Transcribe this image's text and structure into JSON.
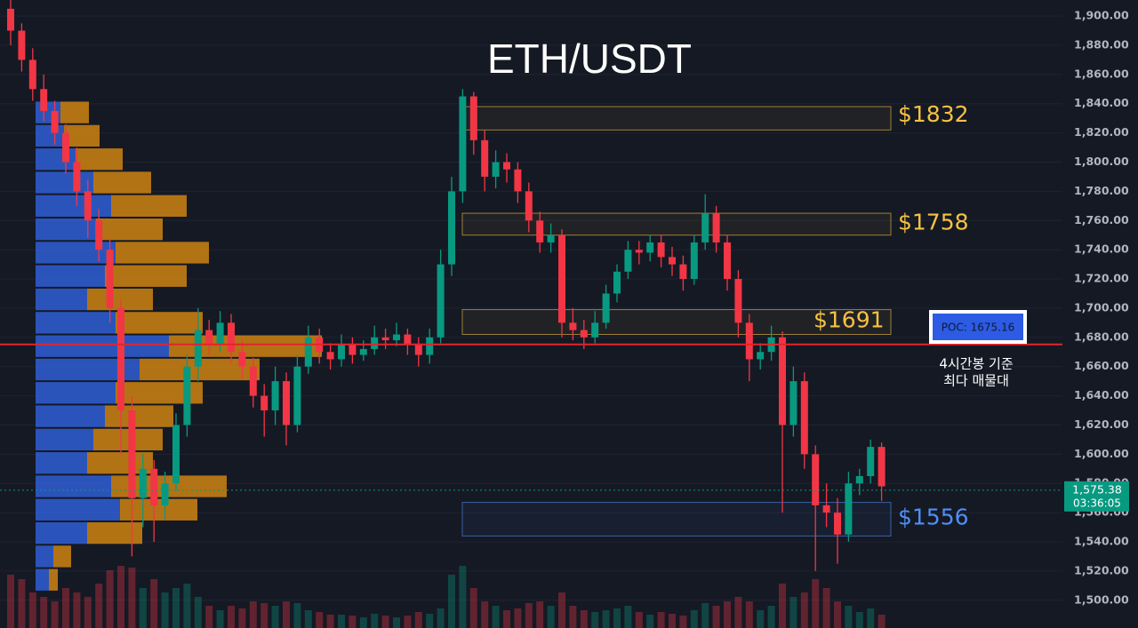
{
  "chart_data": {
    "type": "candlestick",
    "title": "ETH/USDT",
    "ylim": [
      1481,
      1911
    ],
    "yticks": [
      {
        "value": 1500,
        "label": "1,500.00"
      },
      {
        "value": 1520,
        "label": "1,520.00"
      },
      {
        "value": 1540,
        "label": "1,540.00"
      },
      {
        "value": 1560,
        "label": "1,560.00"
      },
      {
        "value": 1580,
        "label": "1,580.00"
      },
      {
        "value": 1600,
        "label": "1,600.00"
      },
      {
        "value": 1620,
        "label": "1,620.00"
      },
      {
        "value": 1640,
        "label": "1,640.00"
      },
      {
        "value": 1660,
        "label": "1,660.00"
      },
      {
        "value": 1680,
        "label": "1,680.00"
      },
      {
        "value": 1700,
        "label": "1,700.00"
      },
      {
        "value": 1720,
        "label": "1,720.00"
      },
      {
        "value": 1740,
        "label": "1,740.00"
      },
      {
        "value": 1760,
        "label": "1,760.00"
      },
      {
        "value": 1780,
        "label": "1,780.00"
      },
      {
        "value": 1800,
        "label": "1,800.00"
      },
      {
        "value": 1820,
        "label": "1,820.00"
      },
      {
        "value": 1840,
        "label": "1,840.00"
      },
      {
        "value": 1860,
        "label": "1,860.00"
      },
      {
        "value": 1880,
        "label": "1,880.00"
      },
      {
        "value": 1900,
        "label": "1,900.00"
      }
    ],
    "grid": true,
    "up_color": "#089981",
    "down_color": "#f23645",
    "ohlc": [
      [
        1905,
        1912,
        1880,
        1890
      ],
      [
        1890,
        1895,
        1862,
        1870
      ],
      [
        1870,
        1878,
        1842,
        1850
      ],
      [
        1850,
        1860,
        1828,
        1835
      ],
      [
        1835,
        1842,
        1812,
        1820
      ],
      [
        1820,
        1826,
        1792,
        1800
      ],
      [
        1800,
        1810,
        1770,
        1780
      ],
      [
        1780,
        1788,
        1748,
        1760
      ],
      [
        1760,
        1768,
        1732,
        1740
      ],
      [
        1740,
        1748,
        1690,
        1700
      ],
      [
        1700,
        1706,
        1600,
        1630
      ],
      [
        1630,
        1640,
        1530,
        1570
      ],
      [
        1570,
        1600,
        1550,
        1590
      ],
      [
        1590,
        1596,
        1540,
        1565
      ],
      [
        1565,
        1588,
        1555,
        1580
      ],
      [
        1580,
        1628,
        1575,
        1620
      ],
      [
        1620,
        1668,
        1612,
        1660
      ],
      [
        1660,
        1700,
        1650,
        1685
      ],
      [
        1685,
        1692,
        1668,
        1675
      ],
      [
        1675,
        1698,
        1670,
        1690
      ],
      [
        1690,
        1696,
        1662,
        1670
      ],
      [
        1670,
        1678,
        1652,
        1660
      ],
      [
        1660,
        1666,
        1632,
        1640
      ],
      [
        1640,
        1648,
        1612,
        1630
      ],
      [
        1630,
        1660,
        1620,
        1650
      ],
      [
        1650,
        1656,
        1606,
        1620
      ],
      [
        1620,
        1668,
        1615,
        1660
      ],
      [
        1660,
        1688,
        1655,
        1680
      ],
      [
        1680,
        1686,
        1662,
        1670
      ],
      [
        1670,
        1676,
        1658,
        1665
      ],
      [
        1665,
        1682,
        1660,
        1675
      ],
      [
        1675,
        1680,
        1662,
        1668
      ],
      [
        1668,
        1678,
        1664,
        1672
      ],
      [
        1672,
        1688,
        1668,
        1680
      ],
      [
        1680,
        1686,
        1672,
        1678
      ],
      [
        1678,
        1690,
        1674,
        1682
      ],
      [
        1682,
        1686,
        1668,
        1675
      ],
      [
        1675,
        1680,
        1660,
        1668
      ],
      [
        1668,
        1686,
        1662,
        1680
      ],
      [
        1680,
        1740,
        1676,
        1730
      ],
      [
        1730,
        1790,
        1722,
        1780
      ],
      [
        1780,
        1850,
        1772,
        1845
      ],
      [
        1845,
        1848,
        1805,
        1815
      ],
      [
        1815,
        1822,
        1780,
        1790
      ],
      [
        1790,
        1808,
        1782,
        1800
      ],
      [
        1800,
        1806,
        1786,
        1795
      ],
      [
        1795,
        1800,
        1772,
        1780
      ],
      [
        1780,
        1786,
        1752,
        1760
      ],
      [
        1760,
        1766,
        1738,
        1745
      ],
      [
        1745,
        1758,
        1738,
        1750
      ],
      [
        1750,
        1754,
        1680,
        1690
      ],
      [
        1690,
        1700,
        1678,
        1685
      ],
      [
        1685,
        1692,
        1672,
        1680
      ],
      [
        1680,
        1698,
        1676,
        1690
      ],
      [
        1690,
        1716,
        1686,
        1710
      ],
      [
        1710,
        1730,
        1704,
        1725
      ],
      [
        1725,
        1746,
        1720,
        1740
      ],
      [
        1740,
        1746,
        1730,
        1738
      ],
      [
        1738,
        1750,
        1732,
        1745
      ],
      [
        1745,
        1750,
        1728,
        1735
      ],
      [
        1735,
        1742,
        1722,
        1730
      ],
      [
        1730,
        1736,
        1712,
        1720
      ],
      [
        1720,
        1750,
        1716,
        1745
      ],
      [
        1745,
        1778,
        1740,
        1765
      ],
      [
        1765,
        1770,
        1738,
        1745
      ],
      [
        1745,
        1750,
        1712,
        1720
      ],
      [
        1720,
        1726,
        1680,
        1690
      ],
      [
        1690,
        1696,
        1650,
        1665
      ],
      [
        1665,
        1676,
        1658,
        1670
      ],
      [
        1670,
        1688,
        1664,
        1680
      ],
      [
        1680,
        1684,
        1560,
        1620
      ],
      [
        1620,
        1660,
        1612,
        1650
      ],
      [
        1650,
        1656,
        1590,
        1600
      ],
      [
        1600,
        1606,
        1520,
        1565
      ],
      [
        1565,
        1580,
        1550,
        1560
      ],
      [
        1560,
        1570,
        1525,
        1545
      ],
      [
        1545,
        1588,
        1540,
        1580
      ],
      [
        1580,
        1590,
        1572,
        1585
      ],
      [
        1585,
        1610,
        1580,
        1605
      ],
      [
        1605,
        1608,
        1568,
        1578
      ]
    ],
    "volume": [
      60,
      55,
      40,
      35,
      30,
      45,
      40,
      35,
      50,
      65,
      70,
      68,
      45,
      55,
      40,
      45,
      50,
      35,
      25,
      20,
      25,
      22,
      30,
      28,
      25,
      30,
      28,
      20,
      18,
      15,
      15,
      14,
      12,
      16,
      14,
      12,
      14,
      18,
      16,
      22,
      60,
      70,
      45,
      30,
      25,
      20,
      22,
      28,
      30,
      25,
      40,
      25,
      20,
      18,
      20,
      22,
      25,
      18,
      15,
      18,
      16,
      14,
      20,
      28,
      25,
      30,
      35,
      30,
      20,
      25,
      50,
      35,
      40,
      55,
      45,
      30,
      25,
      18,
      22,
      15
    ],
    "profile": {
      "bins": [
        1842,
        1826,
        1810,
        1794,
        1778,
        1762,
        1746,
        1730,
        1714,
        1698,
        1682,
        1666,
        1650,
        1634,
        1618,
        1602,
        1586,
        1570,
        1554,
        1538,
        1522,
        1506
      ],
      "buy": [
        28,
        32,
        45,
        65,
        85,
        68,
        90,
        78,
        58,
        90,
        150,
        117,
        90,
        78,
        65,
        58,
        85,
        95,
        58,
        20,
        15
      ],
      "sell": [
        32,
        40,
        53,
        65,
        85,
        75,
        105,
        92,
        74,
        98,
        172,
        135,
        98,
        77,
        78,
        74,
        130,
        87,
        62,
        20,
        10
      ],
      "buy_color": "#2f5fd6",
      "sell_color": "#d98a12"
    },
    "levels": [
      {
        "value": 1832,
        "label": "$1832",
        "low": 1822,
        "high": 1838,
        "color": "#f5c242"
      },
      {
        "value": 1758,
        "label": "$1758",
        "low": 1750,
        "high": 1765,
        "color": "#f5c242"
      },
      {
        "value": 1691,
        "label": "$1691",
        "low": 1682,
        "high": 1699,
        "color": "#f5c242"
      },
      {
        "value": 1556,
        "label": "$1556",
        "low": 1544,
        "high": 1567,
        "color": "#4f8ff7"
      }
    ],
    "poc": {
      "value": 1675.16,
      "label": "POC: 1675.16",
      "note": [
        "4시간봉 기준",
        "최다 매물대"
      ],
      "color": "#e3242b"
    },
    "last_price": {
      "value": 1575.38,
      "label": "1,575.38"
    },
    "countdown": "03:36:05"
  }
}
